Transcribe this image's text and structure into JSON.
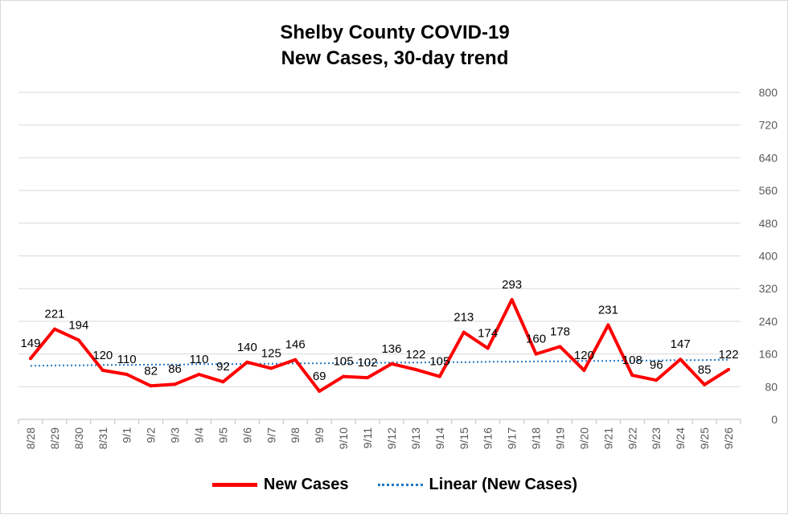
{
  "chart_data": {
    "type": "line",
    "title": "Shelby County COVID-19",
    "subtitle": "New Cases, 30-day trend",
    "xlabel": "",
    "ylabel": "",
    "categories": [
      "8/28",
      "8/29",
      "8/30",
      "8/31",
      "9/1",
      "9/2",
      "9/3",
      "9/4",
      "9/5",
      "9/6",
      "9/7",
      "9/8",
      "9/9",
      "9/10",
      "9/11",
      "9/12",
      "9/13",
      "9/14",
      "9/15",
      "9/16",
      "9/17",
      "9/18",
      "9/19",
      "9/20",
      "9/21",
      "9/22",
      "9/23",
      "9/24",
      "9/25",
      "9/26"
    ],
    "series": [
      {
        "name": "New Cases",
        "color": "#ff0000",
        "values": [
          149,
          221,
          194,
          120,
          110,
          82,
          86,
          110,
          92,
          140,
          125,
          146,
          69,
          105,
          102,
          136,
          122,
          105,
          213,
          174,
          293,
          160,
          178,
          120,
          231,
          108,
          96,
          147,
          85,
          122
        ]
      },
      {
        "name": "Linear (New Cases)",
        "color": "#1f77c4",
        "style": "dotted",
        "values": [
          131,
          132,
          132,
          133,
          133,
          134,
          134,
          135,
          135,
          136,
          136,
          137,
          137,
          138,
          138,
          139,
          139,
          140,
          140,
          141,
          141,
          142,
          142,
          143,
          143,
          144,
          144,
          145,
          145,
          146
        ]
      }
    ],
    "ylim": [
      0,
      800
    ],
    "yticks": [
      0,
      80,
      160,
      240,
      320,
      400,
      480,
      560,
      640,
      720,
      800
    ],
    "y_axis_side": "right",
    "grid": true,
    "legend": "bottom"
  }
}
